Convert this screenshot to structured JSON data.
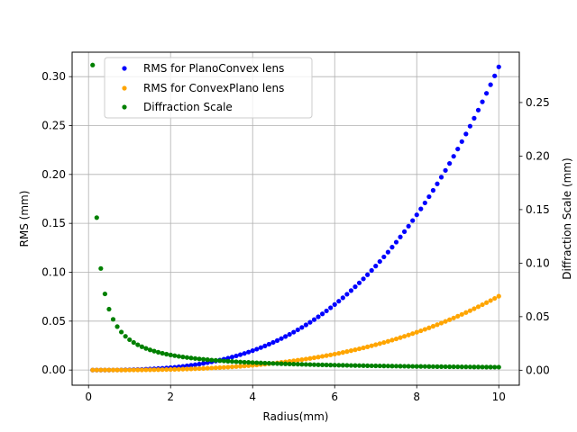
{
  "chart_data": {
    "type": "scatter",
    "xlabel": "Radius(mm)",
    "ylabel_left": "RMS (mm)",
    "ylabel_right": "Diffraction Scale (mm)",
    "xlim": [
      -0.4,
      10.5
    ],
    "ylim_left": [
      -0.0155,
      0.325
    ],
    "ylim_right": [
      -0.014,
      0.297
    ],
    "x_ticks": [
      0,
      2,
      4,
      6,
      8,
      10
    ],
    "x_tick_labels": [
      "0",
      "2",
      "4",
      "6",
      "8",
      "10"
    ],
    "y_left_ticks": [
      0.0,
      0.05,
      0.1,
      0.15,
      0.2,
      0.25,
      0.3
    ],
    "y_left_tick_labels": [
      "0.00",
      "0.05",
      "0.10",
      "0.15",
      "0.20",
      "0.25",
      "0.30"
    ],
    "y_right_ticks": [
      0.0,
      0.05,
      0.1,
      0.15,
      0.2,
      0.25
    ],
    "y_right_tick_labels": [
      "0.00",
      "0.05",
      "0.10",
      "0.15",
      "0.20",
      "0.25"
    ],
    "grid": true,
    "legend_position": "top-left",
    "x_start": 0.1,
    "x_step": 0.1,
    "x_count": 100,
    "series": [
      {
        "name": "RMS for PlanoConvex lens",
        "axis": "left",
        "color": "#0000ff",
        "model": "coef * x^3",
        "coef": 0.00031
      },
      {
        "name": "RMS for ConvexPlano lens",
        "axis": "left",
        "color": "#ffa500",
        "model": "coef * x^3",
        "coef": 7.55e-05
      },
      {
        "name": "Diffraction Scale",
        "axis": "right",
        "color": "#008000",
        "model": "coef / x",
        "coef": 0.0285
      }
    ]
  }
}
